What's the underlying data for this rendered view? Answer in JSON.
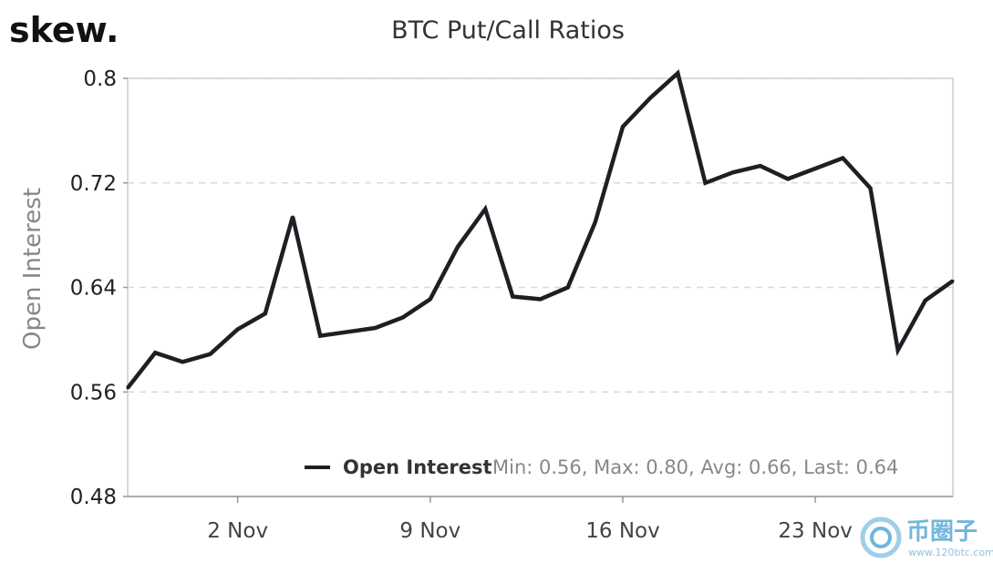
{
  "logo": {
    "text": "skew",
    "dot": ".",
    "dot_color": "#f5b400"
  },
  "chart_data": {
    "type": "line",
    "title": "BTC Put/Call Ratios",
    "ylabel": "Open Interest",
    "xlabel": "",
    "ylim": [
      0.48,
      0.8
    ],
    "yticks": [
      0.48,
      0.56,
      0.64,
      0.72,
      0.8
    ],
    "ytick_labels": [
      "0.48",
      "0.56",
      "0.64",
      "0.72",
      "0.8"
    ],
    "xticks": [
      {
        "x": "2020-11-02",
        "label": "2 Nov"
      },
      {
        "x": "2020-11-09",
        "label": "9 Nov"
      },
      {
        "x": "2020-11-16",
        "label": "16 Nov"
      },
      {
        "x": "2020-11-23",
        "label": "23 Nov"
      }
    ],
    "xlim": [
      "2020-10-29",
      "2020-11-28"
    ],
    "grid": "horizontal dashed",
    "legend_position": "bottom-right",
    "series": [
      {
        "name": "Open Interest",
        "color": "#1e1e24",
        "x": [
          "2020-10-29",
          "2020-10-30",
          "2020-10-31",
          "2020-11-01",
          "2020-11-02",
          "2020-11-03",
          "2020-11-04",
          "2020-11-05",
          "2020-11-06",
          "2020-11-07",
          "2020-11-08",
          "2020-11-09",
          "2020-11-10",
          "2020-11-11",
          "2020-11-12",
          "2020-11-13",
          "2020-11-14",
          "2020-11-15",
          "2020-11-16",
          "2020-11-17",
          "2020-11-18",
          "2020-11-19",
          "2020-11-20",
          "2020-11-21",
          "2020-11-22",
          "2020-11-23",
          "2020-11-24",
          "2020-11-25",
          "2020-11-26",
          "2020-11-27",
          "2020-11-28"
        ],
        "values": [
          0.563,
          0.59,
          0.583,
          0.589,
          0.608,
          0.62,
          0.694,
          0.603,
          0.606,
          0.609,
          0.617,
          0.631,
          0.671,
          0.7,
          0.633,
          0.631,
          0.64,
          0.69,
          0.763,
          0.785,
          0.804,
          0.72,
          0.728,
          0.733,
          0.723,
          0.731,
          0.739,
          0.716,
          0.592,
          0.63,
          0.645
        ]
      }
    ],
    "legend": {
      "name": "Open Interest",
      "stats": "Min: 0.56, Max: 0.80, Avg: 0.66, Last: 0.64"
    }
  },
  "watermark": {
    "text": "币圈子",
    "url": "www.120btc.com"
  }
}
